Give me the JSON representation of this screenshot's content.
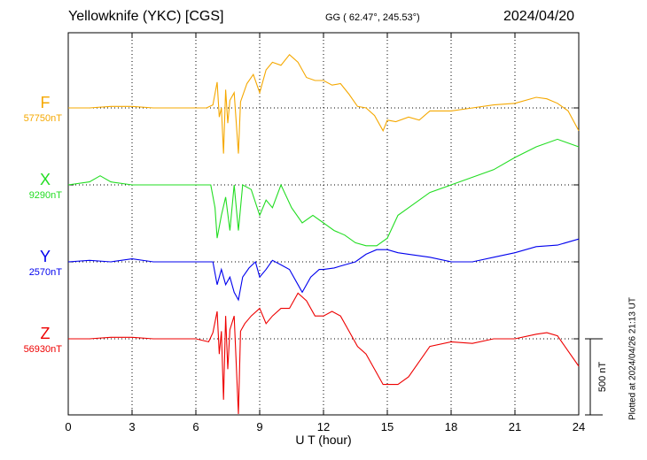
{
  "header": {
    "station": "Yellowknife (YKC)  [CGS]",
    "geo": "GG ( 62.47°, 245.53°)",
    "date": "2024/04/20",
    "plotted": "Plotted at 2024/04/26 21:13 UT"
  },
  "chart_data": {
    "type": "line",
    "xlabel": "U T (hour)",
    "xlim": [
      0,
      24
    ],
    "xticks": [
      "0",
      "3",
      "6",
      "9",
      "12",
      "15",
      "18",
      "21",
      "24"
    ],
    "scale_bar_label": "500 nT",
    "scale_bar_nT": 500,
    "series": [
      {
        "name": "F",
        "baseline_label": "57750nT",
        "color": "#f5a800",
        "x": [
          0,
          1,
          2,
          3,
          4,
          5,
          6,
          6.5,
          6.8,
          7.0,
          7.1,
          7.2,
          7.3,
          7.4,
          7.5,
          7.6,
          7.8,
          8.0,
          8.1,
          8.2,
          8.4,
          8.7,
          9.0,
          9.3,
          9.6,
          10.0,
          10.4,
          10.8,
          11.2,
          11.6,
          12.0,
          12.4,
          12.8,
          13.2,
          13.6,
          14.0,
          14.4,
          14.8,
          15.0,
          15.4,
          16.0,
          16.5,
          17.0,
          18.0,
          19.0,
          20.0,
          21.0,
          22.0,
          22.5,
          23.0,
          23.5,
          24.0
        ],
        "y": [
          0,
          0,
          10,
          10,
          0,
          0,
          0,
          0,
          20,
          170,
          -60,
          0,
          -300,
          120,
          -100,
          50,
          100,
          -300,
          40,
          80,
          160,
          220,
          100,
          250,
          300,
          280,
          350,
          300,
          200,
          180,
          180,
          150,
          160,
          90,
          10,
          0,
          -50,
          -150,
          -80,
          -90,
          -60,
          -80,
          -20,
          -20,
          0,
          20,
          30,
          70,
          60,
          30,
          -20,
          -150
        ]
      },
      {
        "name": "X",
        "baseline_label": "9290nT",
        "color": "#22dd22",
        "x": [
          0,
          1,
          1.5,
          2,
          3,
          4,
          5,
          6,
          6.7,
          6.9,
          7.0,
          7.2,
          7.4,
          7.6,
          7.8,
          8.0,
          8.2,
          8.6,
          9.0,
          9.3,
          9.6,
          10.0,
          10.5,
          11.0,
          11.5,
          12.0,
          12.5,
          13.0,
          13.5,
          14.0,
          14.5,
          15.0,
          15.5,
          16.0,
          17.0,
          18.0,
          19.0,
          20.0,
          21.0,
          22.0,
          23.0,
          24.0
        ],
        "y": [
          0,
          20,
          60,
          20,
          0,
          0,
          0,
          0,
          0,
          -150,
          -350,
          -200,
          -80,
          -300,
          0,
          -300,
          0,
          -30,
          -200,
          -100,
          -150,
          0,
          -150,
          -250,
          -200,
          -250,
          -300,
          -330,
          -380,
          -400,
          -400,
          -350,
          -200,
          -150,
          -50,
          0,
          50,
          100,
          180,
          250,
          300,
          250
        ]
      },
      {
        "name": "Y",
        "baseline_label": "2570nT",
        "color": "#0000ee",
        "x": [
          0,
          1,
          2,
          3,
          4,
          5,
          6,
          6.8,
          7.0,
          7.2,
          7.4,
          7.6,
          7.8,
          8.0,
          8.2,
          8.5,
          8.8,
          9.0,
          9.3,
          9.6,
          10.0,
          10.4,
          10.8,
          11.0,
          11.4,
          11.8,
          12.0,
          12.5,
          13.0,
          13.5,
          14.0,
          14.5,
          15.0,
          15.5,
          16.0,
          17.0,
          18.0,
          19.0,
          20.0,
          21.0,
          22.0,
          23.0,
          24.0
        ],
        "y": [
          0,
          10,
          0,
          20,
          0,
          0,
          0,
          0,
          -150,
          -50,
          -150,
          -100,
          -200,
          -250,
          -100,
          -40,
          0,
          -100,
          -50,
          10,
          -20,
          -50,
          -150,
          -200,
          -100,
          -50,
          -50,
          -40,
          -20,
          0,
          50,
          80,
          80,
          60,
          50,
          30,
          0,
          0,
          30,
          60,
          100,
          110,
          150
        ]
      },
      {
        "name": "Z",
        "baseline_label": "56930nT",
        "color": "#ee0000",
        "x": [
          0,
          1,
          2,
          3,
          4,
          5,
          6,
          6.6,
          6.8,
          7.0,
          7.1,
          7.2,
          7.3,
          7.4,
          7.5,
          7.6,
          7.8,
          8.0,
          8.1,
          8.3,
          8.6,
          9.0,
          9.3,
          9.6,
          10.0,
          10.4,
          10.8,
          11.2,
          11.6,
          12.0,
          12.4,
          12.8,
          13.2,
          13.6,
          14.0,
          14.4,
          14.8,
          15.0,
          15.5,
          16.0,
          17.0,
          18.0,
          19.0,
          20.0,
          21.0,
          22.0,
          22.5,
          23.0,
          23.5,
          24.0
        ],
        "y": [
          0,
          0,
          10,
          10,
          0,
          0,
          0,
          -20,
          40,
          180,
          -100,
          50,
          -400,
          150,
          -200,
          60,
          150,
          -500,
          50,
          100,
          150,
          200,
          100,
          150,
          200,
          200,
          300,
          250,
          150,
          150,
          180,
          150,
          50,
          -50,
          -100,
          -200,
          -300,
          -300,
          -300,
          -250,
          -50,
          -20,
          -30,
          0,
          0,
          30,
          40,
          20,
          -80,
          -180
        ]
      }
    ],
    "grid": true
  }
}
